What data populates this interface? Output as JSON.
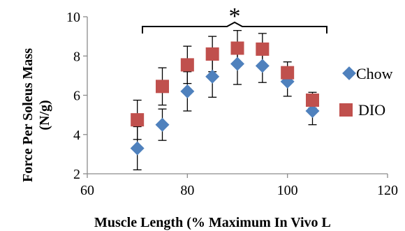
{
  "chart_data": {
    "type": "scatter",
    "title": "",
    "xlabel": "Muscle Length (% Maximum In Vivo L",
    "ylabel_line1": "Force Per Soleus Mass",
    "ylabel_line2": "(N/g)",
    "xlim": [
      60,
      120
    ],
    "ylim": [
      2,
      10
    ],
    "xticks": [
      60,
      80,
      100,
      120
    ],
    "yticks": [
      2,
      4,
      6,
      8,
      10
    ],
    "xtick_labels": [
      "60",
      "80",
      "100",
      "120"
    ],
    "ytick_labels": [
      "2",
      "4",
      "6",
      "8",
      "10"
    ],
    "grid": false,
    "legend_position": "right",
    "annotation": "*",
    "series": [
      {
        "name": "Chow",
        "marker": "diamond",
        "color": "#4F81BD",
        "x": [
          70,
          75,
          80,
          85,
          90,
          95,
          100,
          105
        ],
        "y": [
          3.3,
          4.5,
          6.2,
          6.95,
          7.6,
          7.5,
          6.7,
          5.2
        ],
        "err": [
          1.1,
          0.8,
          1.0,
          1.05,
          1.05,
          0.85,
          0.75,
          0.7
        ]
      },
      {
        "name": "DIO",
        "marker": "square",
        "color": "#C0504D",
        "x": [
          70,
          75,
          80,
          85,
          90,
          95,
          100,
          105
        ],
        "y": [
          4.75,
          6.45,
          7.55,
          8.1,
          8.4,
          8.35,
          7.15,
          5.75
        ],
        "err": [
          1.0,
          0.95,
          0.95,
          0.9,
          0.9,
          0.8,
          0.55,
          0.4
        ]
      }
    ]
  }
}
